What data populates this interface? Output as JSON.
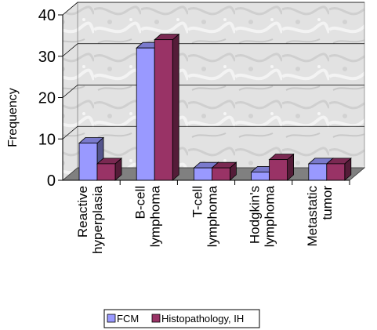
{
  "chart_data": {
    "type": "bar",
    "title": "",
    "xlabel": "",
    "ylabel": "Frequency",
    "ylim": [
      0,
      40
    ],
    "yticks": [
      0,
      10,
      20,
      30,
      40
    ],
    "grid": true,
    "legend_position": "bottom",
    "categories": [
      [
        "Reactive",
        "hyperplasia"
      ],
      [
        "B-cell",
        "lymphoma"
      ],
      [
        "T-cell",
        "lymphoma"
      ],
      [
        "Hodgkin's",
        "lymphoma"
      ],
      [
        "Metastatic",
        "tumor"
      ]
    ],
    "series": [
      {
        "name": "FCM",
        "values": [
          9,
          32,
          3,
          2,
          4
        ],
        "color": "#9999ff"
      },
      {
        "name": "Histopathology, IH",
        "values": [
          4,
          34,
          3,
          5,
          4
        ],
        "color": "#993366"
      }
    ]
  }
}
